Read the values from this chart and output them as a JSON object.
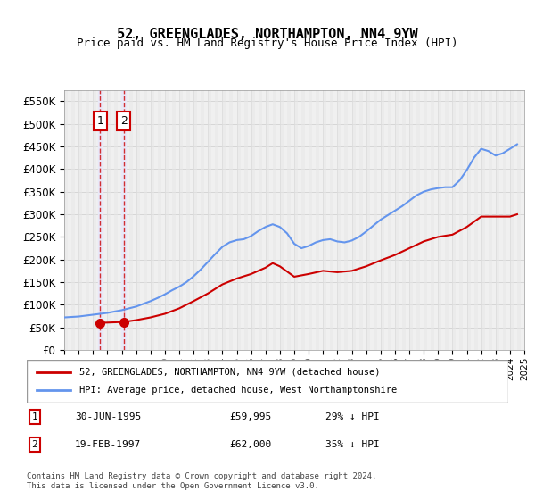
{
  "title": "52, GREENGLADES, NORTHAMPTON, NN4 9YW",
  "subtitle": "Price paid vs. HM Land Registry's House Price Index (HPI)",
  "legend_line1": "52, GREENGLADES, NORTHAMPTON, NN4 9YW (detached house)",
  "legend_line2": "HPI: Average price, detached house, West Northamptonshire",
  "transaction1_label": "1",
  "transaction1_date": "30-JUN-1995",
  "transaction1_price": "£59,995",
  "transaction1_hpi": "29% ↓ HPI",
  "transaction2_label": "2",
  "transaction2_date": "19-FEB-1997",
  "transaction2_price": "£62,000",
  "transaction2_hpi": "35% ↓ HPI",
  "footer": "Contains HM Land Registry data © Crown copyright and database right 2024.\nThis data is licensed under the Open Government Licence v3.0.",
  "ylim": [
    0,
    575000
  ],
  "yticks": [
    0,
    50000,
    100000,
    150000,
    200000,
    250000,
    300000,
    350000,
    400000,
    450000,
    500000,
    550000
  ],
  "hpi_color": "#6495ED",
  "price_color": "#CC0000",
  "marker_color": "#CC0000",
  "transaction1_x": 1995.5,
  "transaction2_x": 1997.13,
  "hatch_color": "#cccccc",
  "bg_hatch": "#f0f0f0",
  "highlight1_color": "#e8e8f8",
  "highlight2_color": "#e8e8f8",
  "hpi_data_x": [
    1993,
    1993.5,
    1994,
    1994.5,
    1995,
    1995.5,
    1996,
    1996.5,
    1997,
    1997.5,
    1998,
    1998.5,
    1999,
    1999.5,
    2000,
    2000.5,
    2001,
    2001.5,
    2002,
    2002.5,
    2003,
    2003.5,
    2004,
    2004.5,
    2005,
    2005.5,
    2006,
    2006.5,
    2007,
    2007.5,
    2008,
    2008.5,
    2009,
    2009.5,
    2010,
    2010.5,
    2011,
    2011.5,
    2012,
    2012.5,
    2013,
    2013.5,
    2014,
    2014.5,
    2015,
    2015.5,
    2016,
    2016.5,
    2017,
    2017.5,
    2018,
    2018.5,
    2019,
    2019.5,
    2020,
    2020.5,
    2021,
    2021.5,
    2022,
    2022.5,
    2023,
    2023.5,
    2024,
    2024.5
  ],
  "hpi_data_y": [
    72000,
    73000,
    74000,
    76000,
    78000,
    80000,
    82000,
    85000,
    88000,
    92000,
    96000,
    102000,
    108000,
    115000,
    123000,
    132000,
    140000,
    150000,
    163000,
    178000,
    195000,
    212000,
    228000,
    238000,
    243000,
    245000,
    252000,
    263000,
    272000,
    278000,
    272000,
    258000,
    235000,
    225000,
    230000,
    238000,
    243000,
    245000,
    240000,
    238000,
    242000,
    250000,
    262000,
    275000,
    288000,
    298000,
    308000,
    318000,
    330000,
    342000,
    350000,
    355000,
    358000,
    360000,
    360000,
    375000,
    398000,
    425000,
    445000,
    440000,
    430000,
    435000,
    445000,
    455000
  ],
  "price_data_x": [
    1995.5,
    1997.13,
    1998,
    1999,
    2000,
    2001,
    2002,
    2003,
    2004,
    2005,
    2006,
    2007,
    2007.5,
    2008,
    2009,
    2010,
    2011,
    2012,
    2013,
    2014,
    2015,
    2016,
    2017,
    2018,
    2019,
    2020,
    2021,
    2022,
    2023,
    2024,
    2024.5
  ],
  "price_data_y": [
    59995,
    62000,
    66000,
    72000,
    80000,
    92000,
    108000,
    125000,
    145000,
    158000,
    168000,
    182000,
    192000,
    185000,
    162000,
    168000,
    175000,
    172000,
    175000,
    185000,
    198000,
    210000,
    225000,
    240000,
    250000,
    255000,
    272000,
    295000,
    295000,
    295000,
    300000
  ],
  "xmin": 1993,
  "xmax": 2025
}
